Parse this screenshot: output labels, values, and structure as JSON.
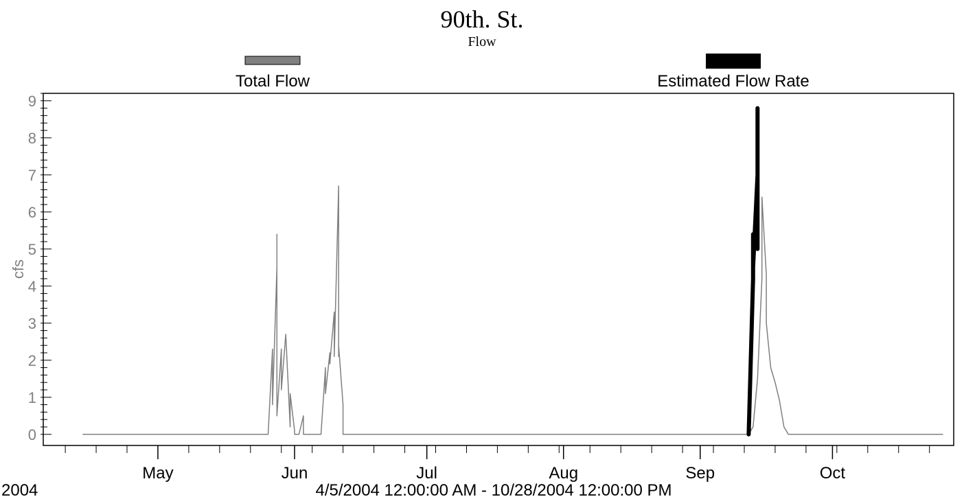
{
  "chart_data": {
    "type": "line",
    "title": "90th. St.",
    "subtitle": "Flow",
    "ylabel": "cfs",
    "ylim": [
      -0.3,
      9.2
    ],
    "yticks": [
      0,
      1,
      2,
      3,
      4,
      5,
      6,
      7,
      8,
      9
    ],
    "xlim": [
      "2004-04-05",
      "2004-10-28"
    ],
    "xticks": [
      {
        "label": "May",
        "date": "2004-05-01"
      },
      {
        "label": "Jun",
        "date": "2004-06-01"
      },
      {
        "label": "Jul",
        "date": "2004-07-01"
      },
      {
        "label": "Aug",
        "date": "2004-08-01"
      },
      {
        "label": "Sep",
        "date": "2004-09-01"
      },
      {
        "label": "Oct",
        "date": "2004-10-01"
      }
    ],
    "year_label": "2004",
    "range_label": "4/5/2004 12:00:00 AM - 10/28/2004 12:00:00 PM",
    "legend_position": "top",
    "grid": false,
    "series": [
      {
        "name": "Total Flow",
        "color": "#808080",
        "style": "thin",
        "x": [
          "2004-04-14",
          "2004-05-25",
          "2004-05-26",
          "2004-05-27",
          "2004-05-27",
          "2004-05-28",
          "2004-05-28",
          "2004-05-28",
          "2004-05-29",
          "2004-05-29",
          "2004-05-30",
          "2004-05-31",
          "2004-05-31",
          "2004-06-01",
          "2004-06-01",
          "2004-06-02",
          "2004-06-03",
          "2004-06-03",
          "2004-06-04",
          "2004-06-05",
          "2004-06-06",
          "2004-06-07",
          "2004-06-08",
          "2004-06-08",
          "2004-06-09",
          "2004-06-09",
          "2004-06-10",
          "2004-06-10",
          "2004-06-11",
          "2004-06-11",
          "2004-06-11",
          "2004-06-12",
          "2004-06-12",
          "2004-06-13",
          "2004-06-14",
          "2004-09-12",
          "2004-09-13",
          "2004-09-14",
          "2004-09-15",
          "2004-09-15",
          "2004-09-16",
          "2004-09-16",
          "2004-09-17",
          "2004-09-18",
          "2004-09-19",
          "2004-09-20",
          "2004-09-21",
          "2004-09-22",
          "2004-10-26"
        ],
        "y": [
          0,
          0,
          0,
          2.3,
          0.8,
          4.5,
          5.4,
          0.5,
          2.3,
          1.2,
          2.7,
          0.2,
          1.1,
          0.1,
          0,
          0,
          0.5,
          0,
          0,
          0,
          0,
          0,
          1.8,
          1.1,
          2.2,
          1.9,
          3.3,
          2.1,
          6.7,
          2.1,
          2.4,
          0.8,
          0,
          0,
          0,
          0,
          0.2,
          1.5,
          4.2,
          6.4,
          4.3,
          3.0,
          1.8,
          1.4,
          0.9,
          0.2,
          0,
          0,
          0
        ]
      },
      {
        "name": "Estimated Flow Rate",
        "color": "#000000",
        "style": "thick",
        "x": [
          "2004-09-12",
          "2004-09-13",
          "2004-09-13",
          "2004-09-13",
          "2004-09-14",
          "2004-09-14",
          "2004-09-14",
          "2004-09-14",
          "2004-09-14",
          "2004-09-14"
        ],
        "y": [
          0,
          4.2,
          5.4,
          4.5,
          7.0,
          8.8,
          8.0,
          5.0,
          7.8,
          6.4
        ]
      }
    ]
  }
}
